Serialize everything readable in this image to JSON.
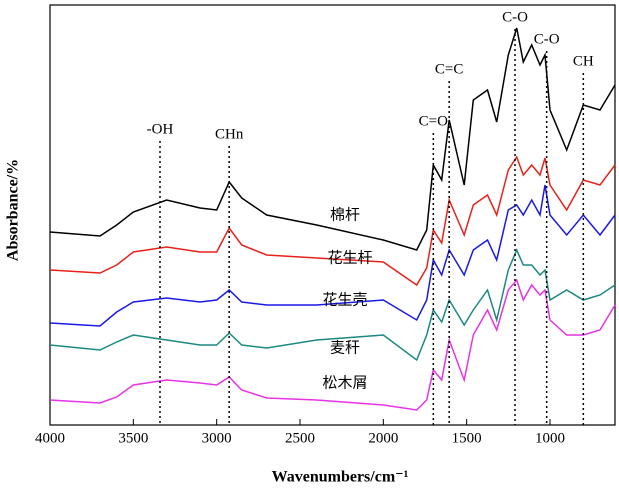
{
  "chart_data": {
    "type": "line",
    "xlabel": "Wavenumbers/cm⁻¹",
    "ylabel": "Absorbance/%",
    "xlim": [
      4000,
      610
    ],
    "ylim": [
      0,
      420
    ],
    "xticks": [
      4000,
      3500,
      3000,
      2500,
      2000,
      1500,
      1000
    ],
    "x": [
      4000,
      3700,
      3600,
      3500,
      3300,
      3100,
      3000,
      2925,
      2850,
      2700,
      2400,
      2000,
      1800,
      1740,
      1700,
      1650,
      1605,
      1515,
      1460,
      1375,
      1320,
      1250,
      1200,
      1160,
      1110,
      1060,
      1030,
      1000,
      900,
      800,
      700,
      610
    ],
    "series": [
      {
        "name": "棉杆",
        "color": "#000000",
        "values": [
          193,
          189,
          200,
          213,
          225,
          217,
          215,
          243,
          227,
          210,
          200,
          185,
          175,
          195,
          260,
          245,
          305,
          240,
          325,
          335,
          303,
          370,
          397,
          363,
          380,
          360,
          370,
          315,
          275,
          320,
          315,
          340
        ]
      },
      {
        "name": "花生杆",
        "color": "#e8211b",
        "values": [
          155,
          152,
          160,
          173,
          178,
          173,
          173,
          197,
          180,
          170,
          167,
          163,
          140,
          157,
          195,
          182,
          225,
          190,
          220,
          230,
          210,
          255,
          268,
          250,
          260,
          250,
          267,
          240,
          215,
          245,
          240,
          260
        ]
      },
      {
        "name": "花生壳",
        "color": "#1a1ae6",
        "values": [
          102,
          99,
          113,
          123,
          127,
          123,
          125,
          135,
          123,
          120,
          120,
          125,
          105,
          125,
          165,
          150,
          175,
          150,
          175,
          185,
          165,
          215,
          220,
          210,
          225,
          210,
          240,
          210,
          190,
          210,
          190,
          210
        ]
      },
      {
        "name": "麦秆",
        "color": "#1a8a80",
        "values": [
          80,
          75,
          83,
          90,
          85,
          80,
          80,
          92,
          80,
          77,
          85,
          90,
          65,
          90,
          115,
          103,
          125,
          100,
          115,
          135,
          105,
          155,
          175,
          160,
          160,
          150,
          155,
          125,
          135,
          125,
          130,
          140
        ]
      },
      {
        "name": "松木屑",
        "color": "#e633e6",
        "values": [
          25,
          22,
          28,
          40,
          45,
          42,
          40,
          48,
          35,
          27,
          25,
          20,
          15,
          25,
          55,
          45,
          85,
          45,
          90,
          115,
          95,
          135,
          145,
          125,
          140,
          130,
          135,
          105,
          90,
          90,
          95,
          120
        ]
      }
    ],
    "annotations": [
      {
        "label": "-OH",
        "x": 3340
      },
      {
        "label": "CHn",
        "x": 2925
      },
      {
        "label": "C=O",
        "x": 1700
      },
      {
        "label": "C=C",
        "x": 1605
      },
      {
        "label": "C-O",
        "x": 1210
      },
      {
        "label": "C-O",
        "x": 1020
      },
      {
        "label": "CH",
        "x": 800
      }
    ]
  }
}
